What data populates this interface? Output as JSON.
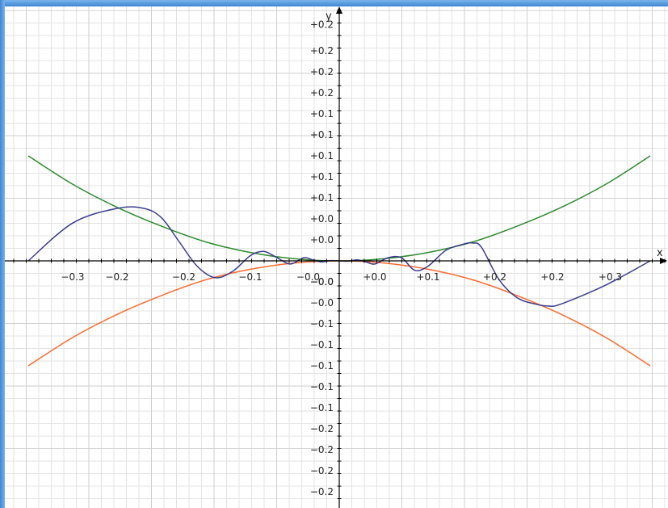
{
  "chart_data": {
    "type": "line",
    "title": "",
    "xlabel": "x",
    "ylabel": "y",
    "xlim": [
      -0.35,
      0.35
    ],
    "ylim": [
      -0.2325,
      0.2325
    ],
    "grid": true,
    "x_tick_labels": [
      {
        "value": -0.3,
        "label": "−0.3"
      },
      {
        "value": -0.25,
        "label": "−0.2"
      },
      {
        "value": -0.175,
        "label": "−0.2"
      },
      {
        "value": -0.1,
        "label": "−0.1"
      },
      {
        "value": -0.035,
        "label": "−0.0"
      },
      {
        "value": 0.04,
        "label": "+0.0"
      },
      {
        "value": 0.1,
        "label": "+0.1"
      },
      {
        "value": 0.175,
        "label": "+0.2"
      },
      {
        "value": 0.24,
        "label": "+0.2"
      },
      {
        "value": 0.305,
        "label": "+0.3"
      }
    ],
    "y_tick_labels": [
      {
        "value": 0.225,
        "label": "+0.2"
      },
      {
        "value": 0.2,
        "label": "+0.2"
      },
      {
        "value": 0.18,
        "label": "+0.2"
      },
      {
        "value": 0.16,
        "label": "+0.2"
      },
      {
        "value": 0.14,
        "label": "+0.1"
      },
      {
        "value": 0.12,
        "label": "+0.1"
      },
      {
        "value": 0.1,
        "label": "+0.1"
      },
      {
        "value": 0.08,
        "label": "+0.1"
      },
      {
        "value": 0.06,
        "label": "+0.1"
      },
      {
        "value": 0.04,
        "label": "+0.0"
      },
      {
        "value": 0.02,
        "label": "+0.0"
      },
      {
        "value": -0.02,
        "label": "−0.0"
      },
      {
        "value": -0.04,
        "label": "−0.0"
      },
      {
        "value": -0.06,
        "label": "−0.1"
      },
      {
        "value": -0.08,
        "label": "−0.1"
      },
      {
        "value": -0.1,
        "label": "−0.1"
      },
      {
        "value": -0.12,
        "label": "−0.1"
      },
      {
        "value": -0.14,
        "label": "−0.1"
      },
      {
        "value": -0.16,
        "label": "−0.2"
      },
      {
        "value": -0.18,
        "label": "−0.2"
      },
      {
        "value": -0.2,
        "label": "−0.2"
      },
      {
        "value": -0.22,
        "label": "−0.2"
      }
    ],
    "origin_label": {
      "value": 0,
      "label": "−0.0"
    },
    "series": [
      {
        "color": "#2e8b2e",
        "x": [
          -0.35,
          -0.3,
          -0.25,
          -0.2,
          -0.15,
          -0.1,
          -0.05,
          0,
          0.05,
          0.1,
          0.15,
          0.2,
          0.25,
          0.3,
          0.35
        ],
        "y": [
          0.1,
          0.073,
          0.051,
          0.033,
          0.018,
          0.008,
          0.002,
          0,
          0.002,
          0.008,
          0.018,
          0.033,
          0.051,
          0.073,
          0.1
        ]
      },
      {
        "color": "#ff6a2f",
        "x": [
          -0.35,
          -0.3,
          -0.25,
          -0.2,
          -0.15,
          -0.1,
          -0.05,
          0,
          0.05,
          0.1,
          0.15,
          0.2,
          0.25,
          0.3,
          0.35
        ],
        "y": [
          -0.1,
          -0.073,
          -0.051,
          -0.033,
          -0.018,
          -0.008,
          -0.002,
          0,
          -0.002,
          -0.008,
          -0.018,
          -0.033,
          -0.051,
          -0.073,
          -0.1
        ]
      },
      {
        "color": "#3c3c8c",
        "x": [
          -0.35,
          -0.3,
          -0.25,
          -0.22,
          -0.2,
          -0.18,
          -0.16,
          -0.14,
          -0.12,
          -0.1,
          -0.085,
          -0.07,
          -0.055,
          -0.04,
          -0.03,
          -0.02,
          -0.01,
          0,
          0.01,
          0.02,
          0.03,
          0.04,
          0.055,
          0.07,
          0.085,
          0.1,
          0.12,
          0.14,
          0.15,
          0.16,
          0.18,
          0.2,
          0.22,
          0.235,
          0.25,
          0.3,
          0.35
        ],
        "y": [
          0,
          0.036,
          0.05,
          0.05,
          0.041,
          0.018,
          -0.005,
          -0.016,
          -0.01,
          0.005,
          0.009,
          0.003,
          -0.003,
          0.003,
          0.001,
          -0.001,
          0.0003,
          0,
          -0.0003,
          0.001,
          -0.001,
          -0.003,
          0.003,
          0.003,
          -0.009,
          -0.005,
          0.01,
          0.016,
          0.017,
          0.013,
          -0.018,
          -0.035,
          -0.041,
          -0.043,
          -0.041,
          -0.023,
          0
        ]
      }
    ]
  }
}
